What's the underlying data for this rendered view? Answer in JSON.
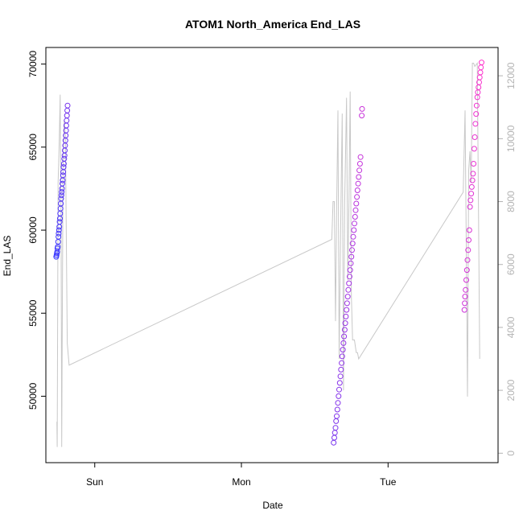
{
  "chart_data": {
    "type": "scatter",
    "title": "ATOM1 North_America End_LAS",
    "xlabel": "Date",
    "ylabel": "End_LAS",
    "x_ticks": [
      "Sun",
      "Mon",
      "Tue"
    ],
    "x_tick_hours": [
      24,
      48,
      72
    ],
    "xlim_hours": [
      16,
      90
    ],
    "ylim": [
      46000,
      71000
    ],
    "y_ticks": [
      50000,
      55000,
      60000,
      65000,
      70000
    ],
    "y2lim": [
      -300,
      12900
    ],
    "y2_ticks": [
      0,
      2000,
      4000,
      6000,
      8000,
      10000,
      12000
    ],
    "grid": false,
    "colors": {
      "points_start": "#3333ff",
      "points_end": "#ff33cc",
      "line": "#c8c8c8"
    },
    "series": [
      {
        "kind": "points",
        "values": [
          [
            17.7,
            58400
          ],
          [
            17.75,
            58500
          ],
          [
            17.8,
            58600
          ],
          [
            17.85,
            58700
          ],
          [
            17.9,
            58900
          ],
          [
            17.95,
            59000
          ],
          [
            18.0,
            59300
          ],
          [
            18.05,
            59600
          ],
          [
            18.1,
            59800
          ],
          [
            18.15,
            60000
          ],
          [
            18.2,
            60200
          ],
          [
            18.25,
            60500
          ],
          [
            18.3,
            60700
          ],
          [
            18.35,
            61000
          ],
          [
            18.4,
            61300
          ],
          [
            18.45,
            61600
          ],
          [
            18.5,
            61900
          ],
          [
            18.55,
            62100
          ],
          [
            18.6,
            62300
          ],
          [
            18.65,
            62500
          ],
          [
            18.7,
            62800
          ],
          [
            18.75,
            63000
          ],
          [
            18.8,
            63300
          ],
          [
            18.85,
            63500
          ],
          [
            18.9,
            63800
          ],
          [
            18.95,
            64000
          ],
          [
            19.0,
            64300
          ],
          [
            19.05,
            64500
          ],
          [
            19.1,
            64800
          ],
          [
            19.15,
            65100
          ],
          [
            19.2,
            65400
          ],
          [
            19.25,
            65700
          ],
          [
            19.3,
            66000
          ],
          [
            19.35,
            66300
          ],
          [
            19.4,
            66600
          ],
          [
            19.45,
            66900
          ],
          [
            19.5,
            67200
          ],
          [
            19.55,
            67500
          ],
          [
            63.1,
            47200
          ],
          [
            63.2,
            47500
          ],
          [
            63.3,
            47800
          ],
          [
            63.4,
            48100
          ],
          [
            63.5,
            48500
          ],
          [
            63.6,
            48800
          ],
          [
            63.7,
            49200
          ],
          [
            63.8,
            49600
          ],
          [
            63.9,
            50000
          ],
          [
            64.0,
            50400
          ],
          [
            64.1,
            50800
          ],
          [
            64.2,
            51200
          ],
          [
            64.3,
            51600
          ],
          [
            64.4,
            52000
          ],
          [
            64.5,
            52400
          ],
          [
            64.6,
            52800
          ],
          [
            64.7,
            53200
          ],
          [
            64.8,
            53600
          ],
          [
            64.9,
            54000
          ],
          [
            65.0,
            54400
          ],
          [
            65.1,
            54800
          ],
          [
            65.2,
            55200
          ],
          [
            65.3,
            55600
          ],
          [
            65.4,
            56000
          ],
          [
            65.5,
            56400
          ],
          [
            65.6,
            56800
          ],
          [
            65.7,
            57200
          ],
          [
            65.8,
            57600
          ],
          [
            65.9,
            58000
          ],
          [
            66.0,
            58400
          ],
          [
            66.1,
            58800
          ],
          [
            66.2,
            59200
          ],
          [
            66.3,
            59600
          ],
          [
            66.4,
            60000
          ],
          [
            66.5,
            60400
          ],
          [
            66.6,
            60800
          ],
          [
            66.7,
            61200
          ],
          [
            66.8,
            61600
          ],
          [
            66.9,
            62000
          ],
          [
            67.0,
            62400
          ],
          [
            67.1,
            62800
          ],
          [
            67.2,
            63200
          ],
          [
            67.3,
            63600
          ],
          [
            67.4,
            64000
          ],
          [
            67.5,
            64400
          ],
          [
            67.7,
            66900
          ],
          [
            67.75,
            67300
          ],
          [
            84.5,
            55200
          ],
          [
            84.55,
            55600
          ],
          [
            84.6,
            56000
          ],
          [
            84.7,
            56400
          ],
          [
            84.8,
            57000
          ],
          [
            84.9,
            57600
          ],
          [
            85.0,
            58200
          ],
          [
            85.1,
            58800
          ],
          [
            85.2,
            59400
          ],
          [
            85.3,
            60000
          ],
          [
            85.4,
            61400
          ],
          [
            85.5,
            61800
          ],
          [
            85.6,
            62200
          ],
          [
            85.7,
            62600
          ],
          [
            85.8,
            63000
          ],
          [
            85.9,
            63400
          ],
          [
            86.0,
            64000
          ],
          [
            86.1,
            64900
          ],
          [
            86.2,
            65600
          ],
          [
            86.3,
            66400
          ],
          [
            86.4,
            67000
          ],
          [
            86.5,
            67500
          ],
          [
            86.6,
            68000
          ],
          [
            86.7,
            68300
          ],
          [
            86.8,
            68600
          ],
          [
            86.9,
            68900
          ],
          [
            87.0,
            69200
          ],
          [
            87.1,
            69500
          ],
          [
            87.2,
            69800
          ],
          [
            87.3,
            70100
          ]
        ]
      },
      {
        "kind": "line",
        "axis": "right",
        "values": [
          [
            17.8,
            1000
          ],
          [
            17.85,
            200
          ],
          [
            18.0,
            8600
          ],
          [
            18.1,
            9200
          ],
          [
            18.2,
            10000
          ],
          [
            18.35,
            11400
          ],
          [
            18.5,
            6500
          ],
          [
            18.6,
            200
          ],
          [
            18.8,
            9000
          ],
          [
            19.0,
            10600
          ],
          [
            19.2,
            10100
          ],
          [
            19.5,
            3500
          ],
          [
            19.8,
            2800
          ],
          [
            62.8,
            6800
          ],
          [
            63.0,
            8000
          ],
          [
            63.2,
            8000
          ],
          [
            63.4,
            4200
          ],
          [
            63.6,
            8000
          ],
          [
            63.8,
            10900
          ],
          [
            64.0,
            3000
          ],
          [
            64.3,
            8000
          ],
          [
            64.5,
            10800
          ],
          [
            64.7,
            2000
          ],
          [
            64.9,
            8000
          ],
          [
            65.2,
            11300
          ],
          [
            65.4,
            5500
          ],
          [
            65.6,
            8000
          ],
          [
            65.8,
            11500
          ],
          [
            66.0,
            5000
          ],
          [
            66.2,
            3600
          ],
          [
            66.5,
            3600
          ],
          [
            66.8,
            3200
          ],
          [
            67.0,
            3200
          ],
          [
            67.2,
            3000
          ],
          [
            84.3,
            8300
          ],
          [
            84.6,
            10900
          ],
          [
            84.8,
            6600
          ],
          [
            85.0,
            1800
          ],
          [
            85.2,
            9000
          ],
          [
            85.4,
            9600
          ],
          [
            85.6,
            8600
          ],
          [
            85.8,
            12400
          ],
          [
            86.0,
            12400
          ],
          [
            86.2,
            12300
          ],
          [
            86.6,
            12400
          ],
          [
            87.0,
            3000
          ]
        ]
      }
    ]
  }
}
